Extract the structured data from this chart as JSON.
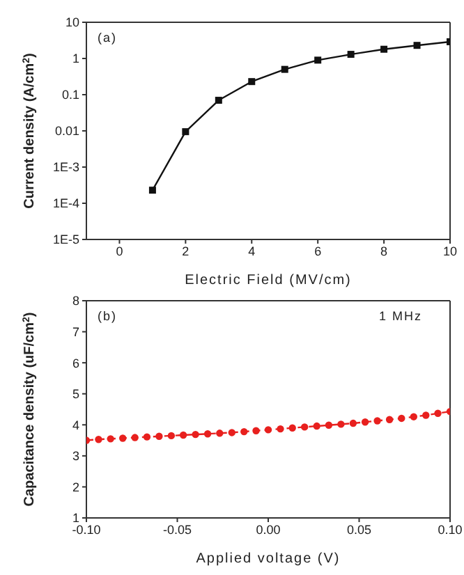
{
  "chart_data": [
    {
      "type": "line",
      "xlabel": "Electric Field (MV/cm)",
      "ylabel": "Current density (A/cm$^{2}$)",
      "annotations": [
        "(a)"
      ],
      "log": "y",
      "marker": "square",
      "line_style": "solid",
      "grid": false,
      "legend": false,
      "x": [
        1,
        2,
        3,
        4,
        5,
        6,
        7,
        8,
        9,
        10
      ],
      "series": [
        {
          "color": "#111111",
          "values": [
            0.00023,
            0.0095,
            0.07,
            0.23,
            0.5,
            0.9,
            1.3,
            1.8,
            2.3,
            2.9
          ]
        }
      ],
      "xlim": [
        -1,
        10
      ],
      "xticks": [
        0,
        2,
        4,
        6,
        8,
        10
      ],
      "ylim": [
        1e-05,
        10
      ],
      "yticks": [
        {
          "value": 1e-05,
          "label": "1E-5"
        },
        {
          "value": 0.0001,
          "label": "1E-4"
        },
        {
          "value": 0.001,
          "label": "1E-3"
        },
        0.01,
        0.1,
        1,
        10
      ]
    },
    {
      "type": "line",
      "xlabel": "Applied voltage (V)",
      "ylabel": "Capacitance density (uF/cm$^{2}$)",
      "annotations": [
        "(b)",
        "1 MHz"
      ],
      "marker": "circle",
      "line_style": "dashed",
      "grid": false,
      "legend": false,
      "x": [
        -0.1,
        -0.0933,
        -0.0867,
        -0.08,
        -0.0733,
        -0.0667,
        -0.06,
        -0.0533,
        -0.0467,
        -0.04,
        -0.0333,
        -0.0267,
        -0.02,
        -0.0133,
        -0.0067,
        0,
        0.0067,
        0.0133,
        0.02,
        0.0267,
        0.0333,
        0.04,
        0.0467,
        0.0533,
        0.06,
        0.0667,
        0.0733,
        0.08,
        0.0867,
        0.0933,
        0.1
      ],
      "series": [
        {
          "color": "#e8201e",
          "values": [
            3.5,
            3.53,
            3.55,
            3.57,
            3.59,
            3.61,
            3.63,
            3.65,
            3.67,
            3.69,
            3.71,
            3.73,
            3.75,
            3.78,
            3.81,
            3.84,
            3.87,
            3.9,
            3.93,
            3.96,
            3.99,
            4.02,
            4.05,
            4.09,
            4.13,
            4.17,
            4.21,
            4.26,
            4.31,
            4.37,
            4.43
          ]
        }
      ],
      "xlim": [
        -0.1,
        0.1
      ],
      "xticks": [
        {
          "value": -0.1,
          "label": "-0.10"
        },
        -0.05,
        {
          "value": 0,
          "label": "0.00"
        },
        0.05,
        {
          "value": 0.1,
          "label": "0.10"
        }
      ],
      "ylim": [
        1,
        8
      ],
      "yticks": [
        1,
        2,
        3,
        4,
        5,
        6,
        7,
        8
      ]
    }
  ]
}
